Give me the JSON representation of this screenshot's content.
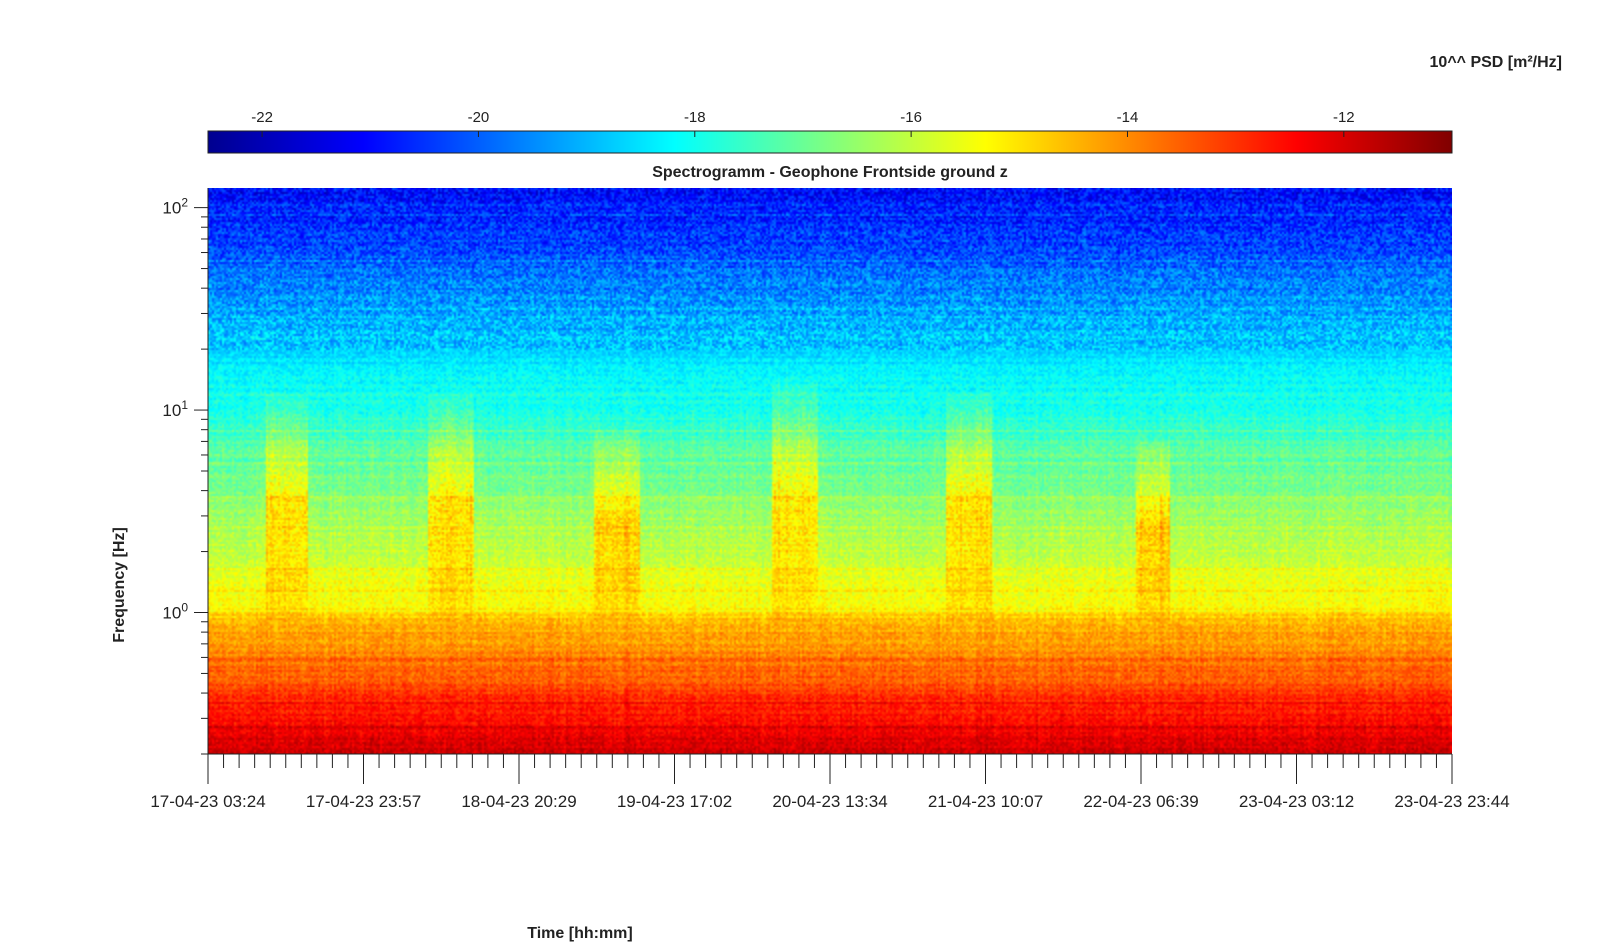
{
  "chart_data": {
    "type": "heatmap",
    "title": "Spectrogramm - Geophone Frontside ground z",
    "xlabel": "Time [hh:mm]",
    "ylabel": "Frequency [Hz]",
    "yscale": "log",
    "ylim": [
      0.2,
      125
    ],
    "y_ticks": [
      {
        "base": "10",
        "exp": "0",
        "value": 1
      },
      {
        "base": "10",
        "exp": "1",
        "value": 10
      },
      {
        "base": "10",
        "exp": "2",
        "value": 100
      }
    ],
    "x_tick_labels": [
      "17-04-23 03:24",
      "17-04-23 23:57",
      "18-04-23 20:29",
      "19-04-23 17:02",
      "20-04-23 13:34",
      "21-04-23 10:07",
      "22-04-23 06:39",
      "23-04-23 03:12",
      "23-04-23 23:44"
    ],
    "colorbar": {
      "label": "10^^ PSD [m²/Hz]",
      "range": [
        -22.5,
        -11
      ],
      "ticks": [
        -22,
        -20,
        -18,
        -16,
        -14,
        -12
      ],
      "colormap": "jet",
      "location": "top"
    },
    "grid": false,
    "activity_bursts": [
      {
        "start": "17-04-23 11:00",
        "end": "17-04-23 16:30",
        "band_hz": [
          1.0,
          12
        ]
      },
      {
        "start": "18-04-23 08:30",
        "end": "18-04-23 14:30",
        "band_hz": [
          1.0,
          12
        ]
      },
      {
        "start": "19-04-23 06:30",
        "end": "19-04-23 12:30",
        "band_hz": [
          1.0,
          8
        ]
      },
      {
        "start": "20-04-23 06:00",
        "end": "20-04-23 12:00",
        "band_hz": [
          1.0,
          14
        ]
      },
      {
        "start": "21-04-23 05:00",
        "end": "21-04-23 11:00",
        "band_hz": [
          1.0,
          12
        ]
      },
      {
        "start": "22-04-23 06:00",
        "end": "22-04-23 10:30",
        "band_hz": [
          1.0,
          7
        ]
      }
    ],
    "colors": {
      "jet": [
        "#00008f",
        "#0000ff",
        "#00ffff",
        "#ffff00",
        "#ff0000",
        "#800000"
      ]
    }
  }
}
